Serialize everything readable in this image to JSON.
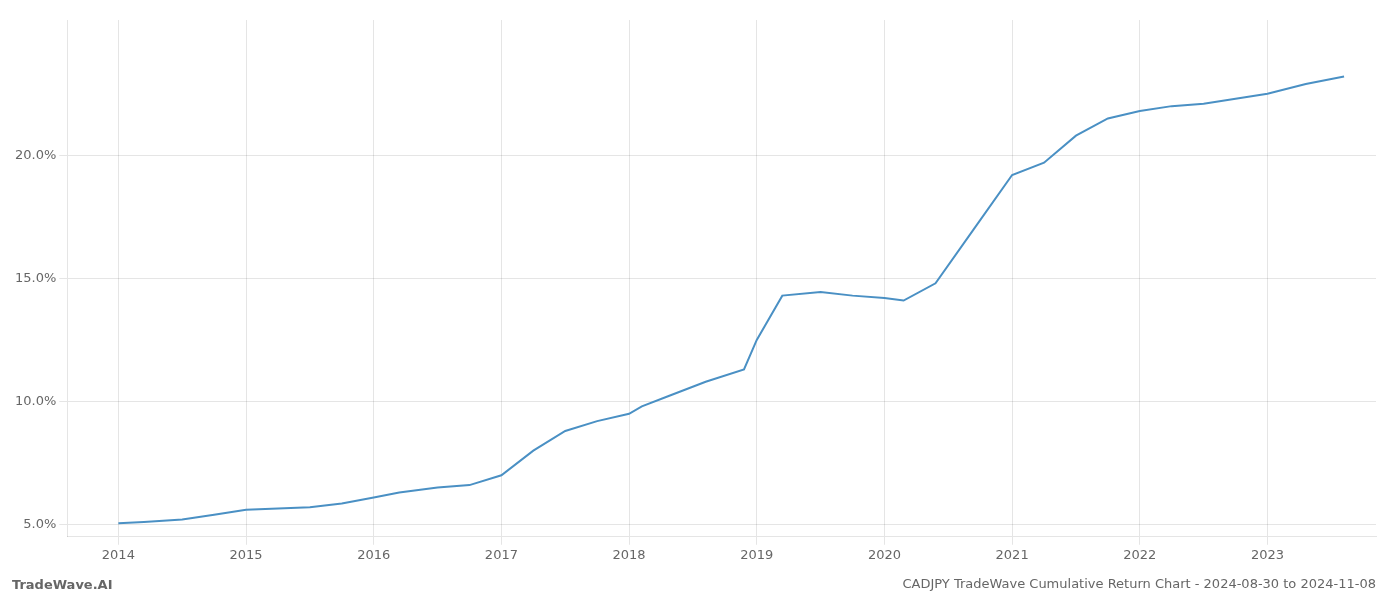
{
  "chart_data": {
    "type": "line",
    "title": "CADJPY TradeWave Cumulative Return Chart - 2024-08-30 to 2024-11-08",
    "annotations": [
      "TradeWave.AI"
    ],
    "x": [
      2014.0,
      2014.2,
      2014.5,
      2014.75,
      2015.0,
      2015.25,
      2015.5,
      2015.75,
      2016.0,
      2016.2,
      2016.5,
      2016.75,
      2017.0,
      2017.25,
      2017.5,
      2017.75,
      2018.0,
      2018.1,
      2018.3,
      2018.6,
      2018.9,
      2019.0,
      2019.2,
      2019.5,
      2019.75,
      2020.0,
      2020.15,
      2020.4,
      2020.7,
      2021.0,
      2021.25,
      2021.5,
      2021.75,
      2022.0,
      2022.25,
      2022.5,
      2022.75,
      2023.0,
      2023.3,
      2023.6
    ],
    "values": [
      5.05,
      5.1,
      5.2,
      5.4,
      5.6,
      5.65,
      5.7,
      5.85,
      6.1,
      6.3,
      6.5,
      6.6,
      7.0,
      8.0,
      8.8,
      9.2,
      9.5,
      9.8,
      10.2,
      10.8,
      11.3,
      12.5,
      14.3,
      14.45,
      14.3,
      14.2,
      14.1,
      14.8,
      17.0,
      19.2,
      19.7,
      20.8,
      21.5,
      21.8,
      22.0,
      22.1,
      22.3,
      22.5,
      22.9,
      23.2
    ],
    "color": "#4a90c4",
    "xlim": [
      2013.6,
      2023.85
    ],
    "xticks": [
      2014,
      2015,
      2016,
      2017,
      2018,
      2019,
      2020,
      2021,
      2022,
      2023
    ],
    "ylim": [
      4.5,
      25.5
    ],
    "yticks": [
      {
        "value": 5.0,
        "label": "5.0%"
      },
      {
        "value": 10.0,
        "label": "10.0%"
      },
      {
        "value": 15.0,
        "label": "15.0%"
      },
      {
        "value": 20.0,
        "label": "20.0%"
      }
    ],
    "grid": true
  }
}
